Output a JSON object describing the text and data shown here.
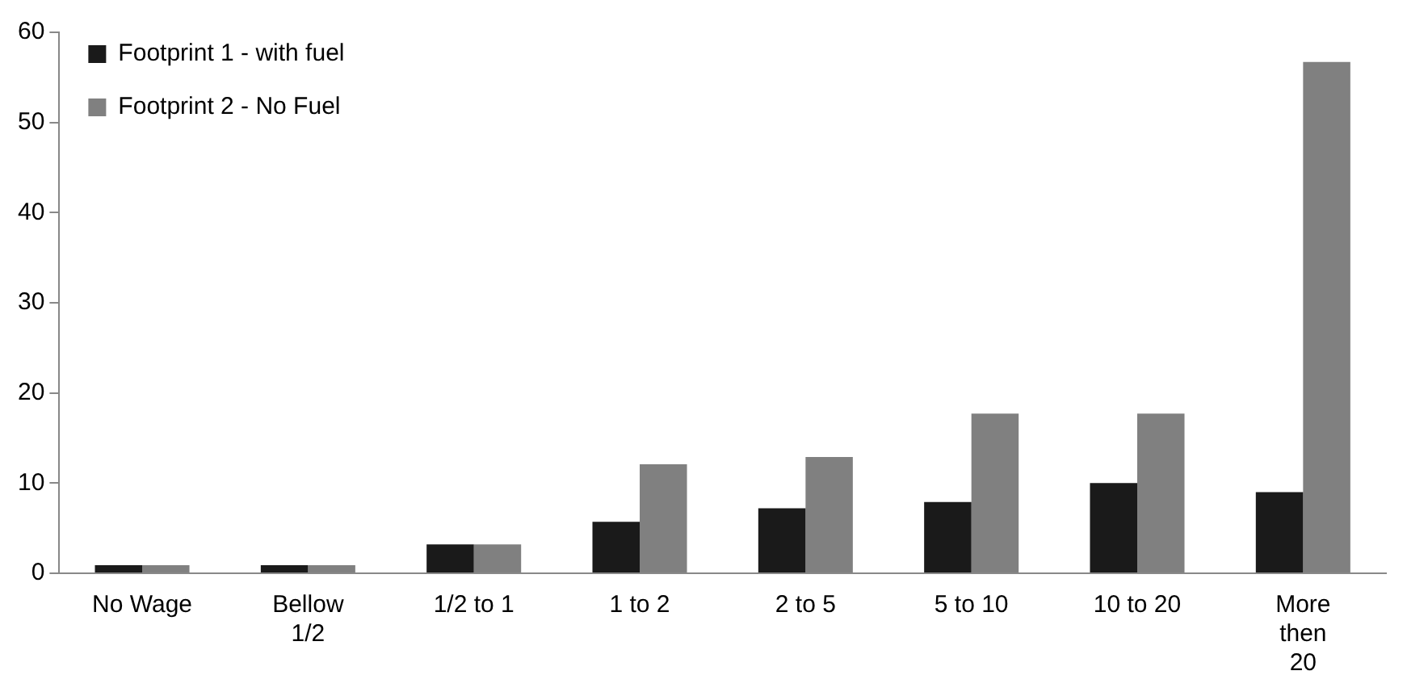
{
  "chart_data": {
    "type": "bar",
    "categories": [
      "No Wage",
      "Bellow 1/2",
      "1/2 to 1",
      "1 to 2",
      "2 to 5",
      "5 to 10",
      "10 to 20",
      "More then 20"
    ],
    "series": [
      {
        "name": "Footprint 1 - with fuel",
        "color": "#1a1a1a",
        "values": [
          0.9,
          0.9,
          3.2,
          5.7,
          7.2,
          7.9,
          10.0,
          9.0
        ]
      },
      {
        "name": "Footprint 2 - No Fuel",
        "color": "#808080",
        "values": [
          0.9,
          0.9,
          3.2,
          12.1,
          12.9,
          17.7,
          17.7,
          56.7
        ]
      }
    ],
    "ylim": [
      0,
      60
    ],
    "yticks": [
      0,
      10,
      20,
      30,
      40,
      50,
      60
    ],
    "grid": false,
    "legend": "top left"
  }
}
